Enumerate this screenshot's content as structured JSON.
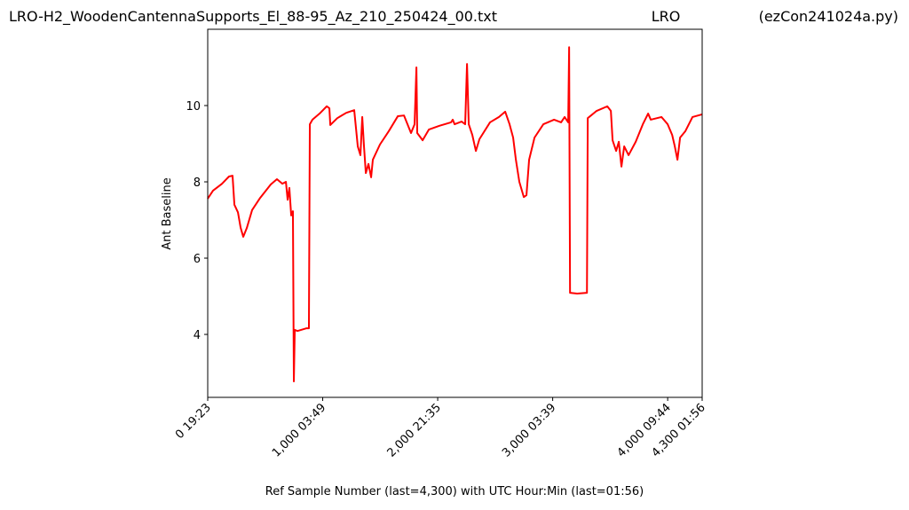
{
  "chart_data": {
    "type": "line",
    "title": "LRO-H2_WoodenCantennaSupports_El_88-95_Az_210_250424_00.txt",
    "subtitle": "LRO",
    "annotations": [
      "(ezCon241024a.py)"
    ],
    "x_label": "Ref Sample Number (last=4,300) with UTC Hour:Min (last=01:56)",
    "y_label": "Ant Baseline",
    "x": [
      0,
      46,
      124,
      185,
      216,
      232,
      263,
      286,
      309,
      340,
      386,
      456,
      548,
      602,
      649,
      680,
      695,
      710,
      726,
      741,
      749,
      757,
      780,
      857,
      880,
      888,
      911,
      973,
      1035,
      1058,
      1066,
      1127,
      1205,
      1274,
      1305,
      1328,
      1344,
      1359,
      1375,
      1398,
      1421,
      1436,
      1498,
      1575,
      1653,
      1707,
      1768,
      1799,
      1815,
      1822,
      1869,
      1923,
      2015,
      2116,
      2131,
      2147,
      2208,
      2239,
      2255,
      2270,
      2301,
      2332,
      2363,
      2455,
      2533,
      2587,
      2625,
      2656,
      2680,
      2710,
      2749,
      2772,
      2795,
      2842,
      2919,
      3012,
      3073,
      3104,
      3135,
      3143,
      3151,
      3213,
      3298,
      3305,
      3382,
      3475,
      3506,
      3521,
      3552,
      3575,
      3598,
      3622,
      3660,
      3722,
      3784,
      3830,
      3853,
      3946,
      4000,
      4039,
      4062,
      4085,
      4108,
      4154,
      4216,
      4300
    ],
    "series": [
      {
        "name": "Ant Baseline",
        "color": "#ff0000",
        "values": [
          7.56,
          7.77,
          7.95,
          8.14,
          8.16,
          7.4,
          7.2,
          6.8,
          6.56,
          6.79,
          7.26,
          7.58,
          7.93,
          8.07,
          7.95,
          8.0,
          7.53,
          7.84,
          7.12,
          7.23,
          2.77,
          4.12,
          4.09,
          4.16,
          4.16,
          9.51,
          9.63,
          9.79,
          9.98,
          9.93,
          9.49,
          9.67,
          9.81,
          9.88,
          8.93,
          8.7,
          9.7,
          8.93,
          8.23,
          8.47,
          8.12,
          8.58,
          8.98,
          9.33,
          9.72,
          9.74,
          9.28,
          9.51,
          11.0,
          9.28,
          9.09,
          9.37,
          9.47,
          9.56,
          9.63,
          9.51,
          9.58,
          9.51,
          11.09,
          9.51,
          9.23,
          8.81,
          9.12,
          9.56,
          9.7,
          9.84,
          9.51,
          9.16,
          8.58,
          8.0,
          7.6,
          7.65,
          8.58,
          9.16,
          9.51,
          9.63,
          9.56,
          9.7,
          9.56,
          11.53,
          5.09,
          5.07,
          5.09,
          9.67,
          9.86,
          9.98,
          9.86,
          9.09,
          8.81,
          9.05,
          8.4,
          8.93,
          8.7,
          9.05,
          9.51,
          9.79,
          9.63,
          9.7,
          9.51,
          9.23,
          8.93,
          8.58,
          9.16,
          9.33,
          9.7,
          9.77
        ]
      }
    ],
    "xlim": [
      0,
      4300
    ],
    "ylim": [
      2.35,
      12.0
    ],
    "xticks": [
      {
        "value": 0,
        "label": "0  19:23"
      },
      {
        "value": 1000,
        "label": "1,000  03:49"
      },
      {
        "value": 2000,
        "label": "2,000  21:35"
      },
      {
        "value": 3000,
        "label": "3,000  03:39"
      },
      {
        "value": 4000,
        "label": "4,000  09:44"
      },
      {
        "value": 4300,
        "label": "4,300  01:56"
      }
    ],
    "yticks": [
      4,
      6,
      8,
      10
    ],
    "grid": false
  }
}
